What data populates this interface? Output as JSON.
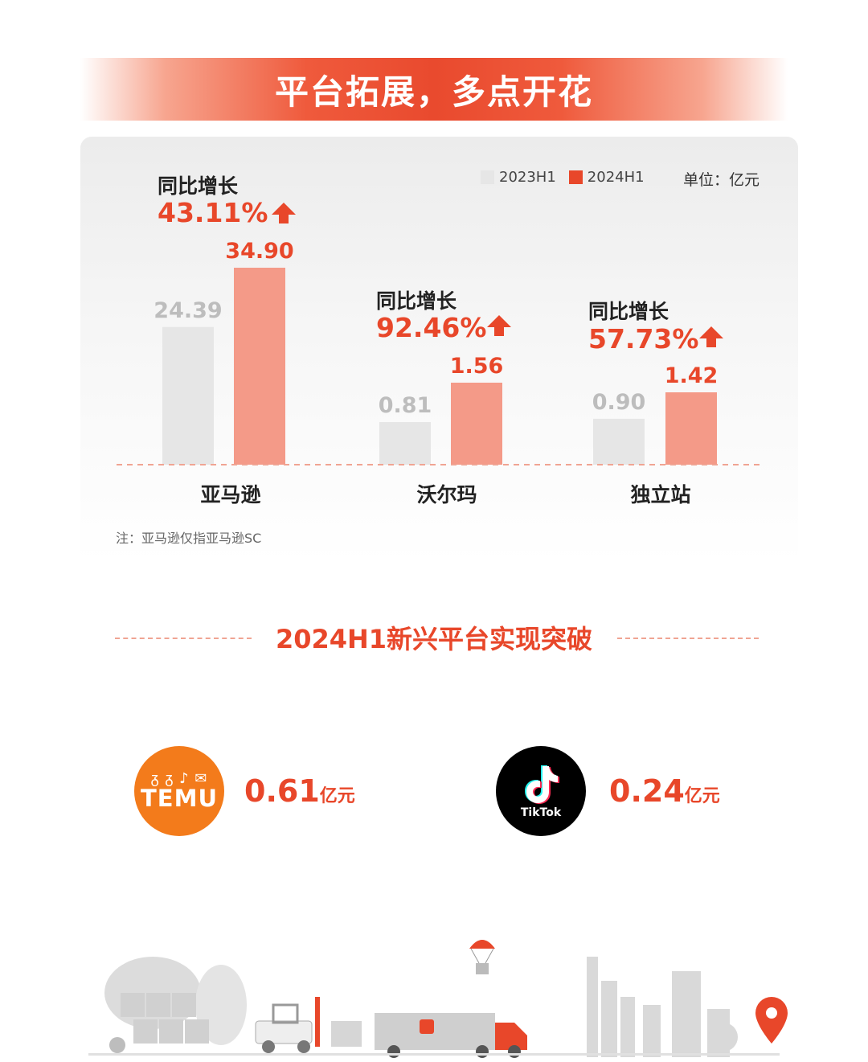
{
  "banner": {
    "title": "平台拓展，多点开花"
  },
  "legend": {
    "series1": "2023H1",
    "series2": "2024H1",
    "unit": "单位：亿元"
  },
  "colors": {
    "accent": "#e8472a",
    "bar_2023": "#e6e6e6",
    "bar_2024": "#f49a88",
    "label_2023": "#bdbdbd"
  },
  "growth": [
    {
      "label": "同比增长",
      "value": "43.11%"
    },
    {
      "label": "同比增长",
      "value": "92.46%"
    },
    {
      "label": "同比增长",
      "value": "57.73%"
    }
  ],
  "chart_data": {
    "type": "bar",
    "categories": [
      "亚马逊",
      "沃尔玛",
      "独立站"
    ],
    "series": [
      {
        "name": "2023H1",
        "values": [
          24.39,
          0.81,
          0.9
        ]
      },
      {
        "name": "2024H1",
        "values": [
          34.9,
          1.56,
          1.42
        ]
      }
    ],
    "value_labels": [
      [
        "24.39",
        "0.81",
        "0.90"
      ],
      [
        "34.90",
        "1.56",
        "1.42"
      ]
    ],
    "unit": "亿元",
    "legend_position": "top-right",
    "grid": false
  },
  "note": "注：亚马逊仅指亚马逊SC",
  "section": {
    "title": "2024H1新兴平台实现突破"
  },
  "platforms": [
    {
      "name": "TEMU",
      "icon_text": "ᵹ ᵹ ♪ ✉",
      "amount": "0.61",
      "unit": "亿元",
      "icon": "temu-logo"
    },
    {
      "name": "TikTok",
      "amount": "0.24",
      "unit": "亿元",
      "icon": "tiktok-logo"
    }
  ]
}
